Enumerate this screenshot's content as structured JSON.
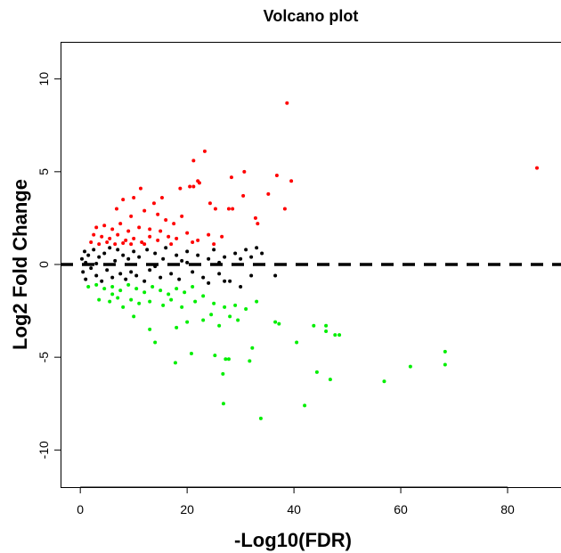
{
  "chart_data": {
    "type": "scatter",
    "title": "Volcano plot",
    "xlabel": "-Log10(FDR)",
    "ylabel": "Log2 Fold Change",
    "xlim": [
      -3.7,
      90
    ],
    "ylim": [
      -12,
      12
    ],
    "xticks": [
      0,
      20,
      40,
      60,
      80
    ],
    "yticks": [
      -10,
      -5,
      0,
      5,
      10
    ],
    "grid": false,
    "reference_line": {
      "y": 0,
      "style": "dashed",
      "color": "#000000"
    },
    "series": [
      {
        "color": "#ff0000",
        "points": [
          [
            38.7,
            8.7
          ],
          [
            85.5,
            5.2
          ],
          [
            23.3,
            6.1
          ],
          [
            21.2,
            5.6
          ],
          [
            30.7,
            5.0
          ],
          [
            28.3,
            4.7
          ],
          [
            36.8,
            4.8
          ],
          [
            39.5,
            4.5
          ],
          [
            22,
            4.5
          ],
          [
            22.3,
            4.4
          ],
          [
            18.7,
            4.1
          ],
          [
            20.5,
            4.2
          ],
          [
            21.2,
            4.2
          ],
          [
            11.3,
            4.1
          ],
          [
            30.5,
            3.7
          ],
          [
            35.2,
            3.8
          ],
          [
            15.3,
            3.6
          ],
          [
            8,
            3.5
          ],
          [
            10,
            3.6
          ],
          [
            38.3,
            3.0
          ],
          [
            27.8,
            3.0
          ],
          [
            28.5,
            3.0
          ],
          [
            24.3,
            3.3
          ],
          [
            25.3,
            3.0
          ],
          [
            32.8,
            2.5
          ],
          [
            33.2,
            2.2
          ],
          [
            6.8,
            3.0
          ],
          [
            13.8,
            3.3
          ],
          [
            12,
            2.9
          ],
          [
            9.5,
            2.6
          ],
          [
            14.5,
            2.7
          ],
          [
            16,
            2.4
          ],
          [
            19,
            2.6
          ],
          [
            17.5,
            2.2
          ],
          [
            3,
            2.0
          ],
          [
            4.5,
            2.1
          ],
          [
            6,
            1.9
          ],
          [
            7.5,
            2.2
          ],
          [
            9,
            1.8
          ],
          [
            11,
            2.0
          ],
          [
            13,
            1.9
          ],
          [
            15,
            1.8
          ],
          [
            2.5,
            1.6
          ],
          [
            4,
            1.5
          ],
          [
            5.5,
            1.4
          ],
          [
            7,
            1.6
          ],
          [
            8.5,
            1.3
          ],
          [
            10,
            1.4
          ],
          [
            11.5,
            1.2
          ],
          [
            13,
            1.5
          ],
          [
            14.5,
            1.3
          ],
          [
            16.5,
            1.5
          ],
          [
            18,
            1.4
          ],
          [
            20,
            1.7
          ],
          [
            22,
            1.3
          ],
          [
            24,
            1.6
          ],
          [
            26.5,
            1.5
          ],
          [
            2,
            1.2
          ],
          [
            3.5,
            1.1
          ],
          [
            5,
            1.2
          ],
          [
            6.5,
            1.1
          ],
          [
            8,
            1.15
          ],
          [
            9.5,
            1.1
          ],
          [
            12,
            1.1
          ],
          [
            17,
            1.1
          ],
          [
            21,
            1.2
          ],
          [
            25,
            1.1
          ]
        ]
      },
      {
        "color": "#000000",
        "points": [
          [
            36.5,
            -0.6
          ],
          [
            0.3,
            0.3
          ],
          [
            0.5,
            -0.4
          ],
          [
            0.8,
            0.7
          ],
          [
            1,
            -0.8
          ],
          [
            1.5,
            0.5
          ],
          [
            2,
            -0.2
          ],
          [
            2.5,
            0.8
          ],
          [
            3,
            -0.6
          ],
          [
            3.5,
            0.4
          ],
          [
            4,
            -0.9
          ],
          [
            4.5,
            0.6
          ],
          [
            5,
            -0.3
          ],
          [
            5.5,
            0.9
          ],
          [
            6,
            -0.7
          ],
          [
            6.5,
            0.2
          ],
          [
            7,
            0.8
          ],
          [
            7.5,
            -0.5
          ],
          [
            8,
            0.5
          ],
          [
            8.5,
            -0.8
          ],
          [
            9,
            0.3
          ],
          [
            9.5,
            -0.4
          ],
          [
            10,
            0.7
          ],
          [
            10.5,
            -0.6
          ],
          [
            11,
            0.4
          ],
          [
            12,
            -0.9
          ],
          [
            12.5,
            0.8
          ],
          [
            13,
            -0.3
          ],
          [
            14,
            0.6
          ],
          [
            15,
            -0.7
          ],
          [
            15.5,
            0.3
          ],
          [
            16,
            0.9
          ],
          [
            17,
            -0.5
          ],
          [
            18,
            0.5
          ],
          [
            18.5,
            -0.8
          ],
          [
            19,
            0.2
          ],
          [
            20,
            0.7
          ],
          [
            21,
            -0.4
          ],
          [
            22,
            0.5
          ],
          [
            23,
            -0.7
          ],
          [
            24,
            0.3
          ],
          [
            25,
            0.8
          ],
          [
            26,
            -0.5
          ],
          [
            27,
            0.4
          ],
          [
            28,
            -0.9
          ],
          [
            29,
            0.6
          ],
          [
            30,
            0.3
          ],
          [
            31,
            0.8
          ],
          [
            32,
            0.4
          ],
          [
            33,
            0.9
          ],
          [
            34,
            0.6
          ],
          [
            24,
            -1.0
          ],
          [
            27,
            -0.9
          ],
          [
            30,
            -1.2
          ],
          [
            32,
            -0.6
          ],
          [
            26,
            0.1
          ],
          [
            20,
            0.1
          ],
          [
            14,
            -0.1
          ],
          [
            3,
            0.05
          ],
          [
            1,
            0.1
          ]
        ]
      },
      {
        "color": "#00ee00",
        "points": [
          [
            36.5,
            -3.1
          ],
          [
            37.2,
            -3.2
          ],
          [
            43.7,
            -3.3
          ],
          [
            46,
            -3.3
          ],
          [
            46,
            -3.6
          ],
          [
            47.7,
            -3.8
          ],
          [
            48.5,
            -3.8
          ],
          [
            40.5,
            -4.2
          ],
          [
            32.2,
            -4.5
          ],
          [
            14,
            -4.2
          ],
          [
            20.8,
            -4.8
          ],
          [
            25.2,
            -4.9
          ],
          [
            27.2,
            -5.1
          ],
          [
            27.8,
            -5.1
          ],
          [
            31.7,
            -5.2
          ],
          [
            17.8,
            -5.3
          ],
          [
            26.7,
            -5.9
          ],
          [
            44.3,
            -5.8
          ],
          [
            46.8,
            -6.2
          ],
          [
            26.8,
            -7.5
          ],
          [
            42,
            -7.6
          ],
          [
            33.8,
            -8.3
          ],
          [
            68.3,
            -4.7
          ],
          [
            68.3,
            -5.4
          ],
          [
            61.8,
            -5.5
          ],
          [
            56.9,
            -6.3
          ],
          [
            1.5,
            -1.2
          ],
          [
            3,
            -1.1
          ],
          [
            4.5,
            -1.3
          ],
          [
            6,
            -1.2
          ],
          [
            7.5,
            -1.4
          ],
          [
            9,
            -1.1
          ],
          [
            10.5,
            -1.3
          ],
          [
            12,
            -1.5
          ],
          [
            13.5,
            -1.2
          ],
          [
            15,
            -1.4
          ],
          [
            16.5,
            -1.6
          ],
          [
            18,
            -1.3
          ],
          [
            19.5,
            -1.5
          ],
          [
            21,
            -1.2
          ],
          [
            3.5,
            -1.9
          ],
          [
            5.5,
            -2.0
          ],
          [
            7,
            -1.8
          ],
          [
            9.5,
            -1.9
          ],
          [
            11,
            -2.1
          ],
          [
            13,
            -2.0
          ],
          [
            15.5,
            -2.2
          ],
          [
            17,
            -1.9
          ],
          [
            19,
            -2.3
          ],
          [
            21.5,
            -2.0
          ],
          [
            23,
            -1.7
          ],
          [
            25,
            -2.1
          ],
          [
            27,
            -2.3
          ],
          [
            29,
            -2.2
          ],
          [
            31,
            -2.4
          ],
          [
            33,
            -2.0
          ],
          [
            24.5,
            -2.7
          ],
          [
            23,
            -3.0
          ],
          [
            20,
            -3.1
          ],
          [
            18,
            -3.4
          ],
          [
            13,
            -3.5
          ],
          [
            10,
            -2.8
          ],
          [
            8,
            -2.3
          ],
          [
            6,
            -1.6
          ],
          [
            29.5,
            -3.0
          ],
          [
            28,
            -2.8
          ],
          [
            26,
            -3.3
          ]
        ]
      }
    ]
  }
}
